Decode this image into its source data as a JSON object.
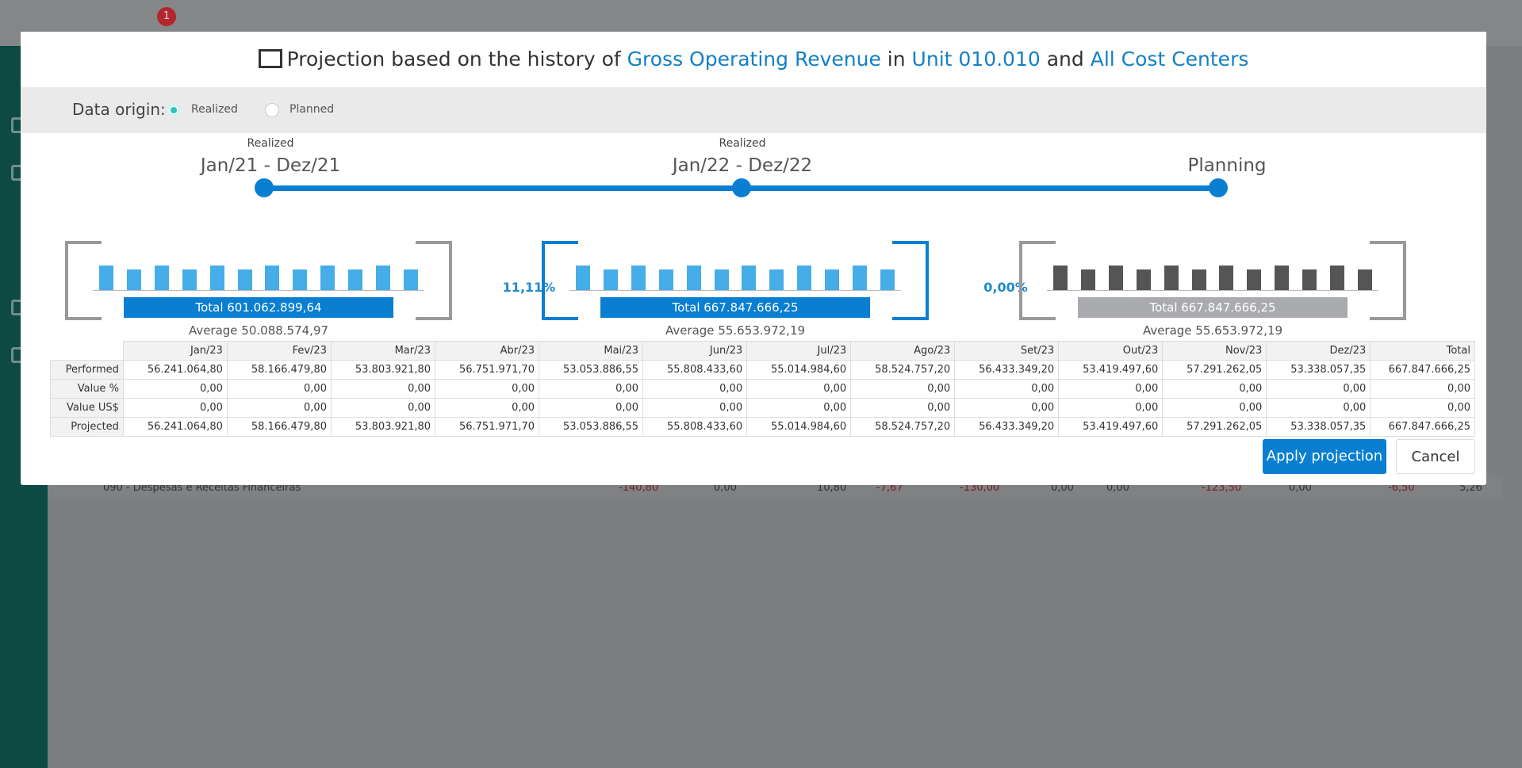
{
  "badge": "1",
  "background_row": {
    "label": "090 - Despesas e Receitas Financeiras",
    "values": [
      "-140,80",
      "0,00",
      "10,80",
      "-7,67",
      "-130,00",
      "0,00",
      "0,00",
      "-123,50",
      "0,00",
      "-6,50",
      "5,26"
    ]
  },
  "header": {
    "parts": [
      "Projection based on the history of",
      "Gross Operating Revenue",
      "in",
      "Unit 010.010",
      "and",
      "All Cost Centers"
    ]
  },
  "data_origin": {
    "label": "Data origin:",
    "options": [
      "Realized",
      "Planned"
    ]
  },
  "timeline": [
    {
      "caption": "Realized",
      "period": "Jan/21 - Dez/21"
    },
    {
      "caption": "Realized",
      "period": "Jan/22 - Dez/22"
    },
    {
      "period": "Planning"
    }
  ],
  "panels": [
    {
      "total": "Total 601.062.899,64",
      "average": "Average 50.088.574,97"
    },
    {
      "total": "Total 667.847.666,25",
      "average": "Average 55.653.972,19"
    },
    {
      "total": "Total 667.847.666,25",
      "average": "Average 55.653.972,19"
    }
  ],
  "changes": [
    "11,11%",
    "0,00%"
  ],
  "table": {
    "columns": [
      "Jan/23",
      "Fev/23",
      "Mar/23",
      "Abr/23",
      "Mai/23",
      "Jun/23",
      "Jul/23",
      "Ago/23",
      "Set/23",
      "Out/23",
      "Nov/23",
      "Dez/23",
      "Total"
    ],
    "rows": [
      {
        "label": "Performed",
        "values": [
          "56.241.064,80",
          "58.166.479,80",
          "53.803.921,80",
          "56.751.971,70",
          "53.053.886,55",
          "55.808.433,60",
          "55.014.984,60",
          "58.524.757,20",
          "56.433.349,20",
          "53.419.497,60",
          "57.291.262,05",
          "53.338.057,35",
          "667.847.666,25"
        ]
      },
      {
        "label": "Value %",
        "values": [
          "0,00",
          "0,00",
          "0,00",
          "0,00",
          "0,00",
          "0,00",
          "0,00",
          "0,00",
          "0,00",
          "0,00",
          "0,00",
          "0,00",
          "0,00"
        ]
      },
      {
        "label": "Value US$",
        "values": [
          "0,00",
          "0,00",
          "0,00",
          "0,00",
          "0,00",
          "0,00",
          "0,00",
          "0,00",
          "0,00",
          "0,00",
          "0,00",
          "0,00",
          "0,00"
        ]
      },
      {
        "label": "Projected",
        "values": [
          "56.241.064,80",
          "58.166.479,80",
          "53.803.921,80",
          "56.751.971,70",
          "53.053.886,55",
          "55.808.433,60",
          "55.014.984,60",
          "58.524.757,20",
          "56.433.349,20",
          "53.419.497,60",
          "57.291.262,05",
          "53.338.057,35",
          "667.847.666,25"
        ]
      }
    ]
  },
  "buttons": [
    "Apply projection",
    "Cancel"
  ]
}
